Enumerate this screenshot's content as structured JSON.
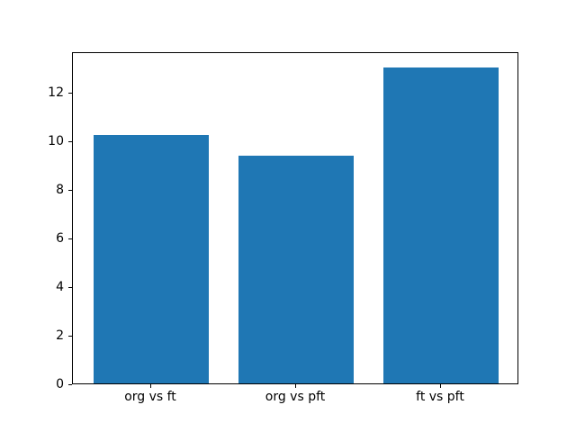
{
  "chart_data": {
    "type": "bar",
    "title": "",
    "xlabel": "",
    "ylabel": "",
    "categories": [
      "org vs ft",
      "org vs pft",
      "ft vs pft"
    ],
    "values": [
      10.2,
      9.35,
      13.0
    ],
    "yticks": [
      0,
      2,
      4,
      6,
      8,
      10,
      12
    ],
    "ylim": [
      0,
      13.65
    ],
    "xlim": [
      -0.54,
      2.54
    ],
    "bar_width": 0.8,
    "bar_color": "#1f77b4",
    "spine_color": "#000000",
    "background_color": "#ffffff",
    "grid": false,
    "legend": null
  }
}
